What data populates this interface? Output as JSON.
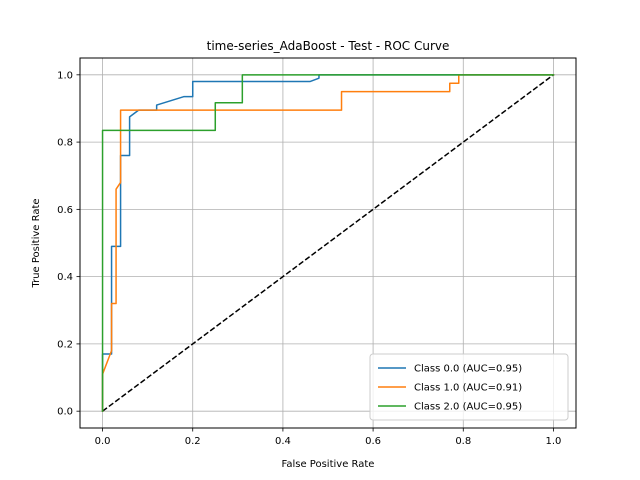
{
  "chart_data": {
    "type": "line",
    "title": "time-series_AdaBoost - Test - ROC Curve",
    "xlabel": "False Positive Rate",
    "ylabel": "True Positive Rate",
    "xlim": [
      -0.05,
      1.05
    ],
    "ylim": [
      -0.05,
      1.05
    ],
    "xticks": [
      0.0,
      0.2,
      0.4,
      0.6,
      0.8,
      1.0
    ],
    "yticks": [
      0.0,
      0.2,
      0.4,
      0.6,
      0.8,
      1.0
    ],
    "xtick_labels": [
      "0.0",
      "0.2",
      "0.4",
      "0.6",
      "0.8",
      "1.0"
    ],
    "ytick_labels": [
      "0.0",
      "0.2",
      "0.4",
      "0.6",
      "0.8",
      "1.0"
    ],
    "grid": true,
    "legend_position": "lower-right",
    "series": [
      {
        "name": "Class 0.0 (AUC=0.95)",
        "color": "#1f77b4",
        "x": [
          0.0,
          0.0,
          0.02,
          0.02,
          0.04,
          0.04,
          0.06,
          0.06,
          0.08,
          0.08,
          0.12,
          0.12,
          0.18,
          0.18,
          0.2,
          0.2,
          0.46,
          0.46,
          0.48,
          0.48,
          1.0
        ],
        "y": [
          0.0,
          0.17,
          0.17,
          0.49,
          0.49,
          0.76,
          0.76,
          0.875,
          0.895,
          0.895,
          0.895,
          0.91,
          0.935,
          0.935,
          0.935,
          0.98,
          0.98,
          0.98,
          0.99,
          1.0,
          1.0
        ]
      },
      {
        "name": "Class 1.0 (AUC=0.91)",
        "color": "#ff7f0e",
        "x": [
          0.0,
          0.0,
          0.02,
          0.02,
          0.03,
          0.03,
          0.04,
          0.04,
          0.53,
          0.53,
          0.77,
          0.77,
          0.79,
          0.79,
          1.0
        ],
        "y": [
          0.0,
          0.11,
          0.18,
          0.32,
          0.32,
          0.66,
          0.68,
          0.895,
          0.895,
          0.95,
          0.95,
          0.975,
          0.975,
          1.0,
          1.0
        ]
      },
      {
        "name": "Class 2.0 (AUC=0.95)",
        "color": "#2ca02c",
        "x": [
          0.0,
          0.0,
          0.25,
          0.25,
          0.31,
          0.31,
          1.0
        ],
        "y": [
          0.0,
          0.835,
          0.835,
          0.917,
          0.917,
          1.0,
          1.0
        ]
      }
    ],
    "reference_line": {
      "x": [
        0.0,
        1.0
      ],
      "y": [
        0.0,
        1.0
      ],
      "color": "#000000",
      "style": "dashed"
    }
  }
}
